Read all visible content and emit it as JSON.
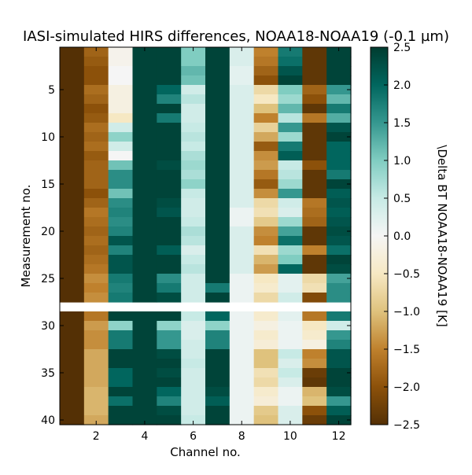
{
  "chart_data": {
    "type": "heatmap",
    "title": "IASI-simulated HIRS differences, NOAA18-NOAA19 (-0.1 µm)",
    "xlabel": "Channel no.",
    "ylabel": "Measurement no.",
    "colorbar_label": "\\Delta BT NOAA18-NOAA19 [K]",
    "colormap": "BrBG",
    "vmin": -2.5,
    "vmax": 2.5,
    "x_ticks": [
      2,
      4,
      6,
      8,
      10,
      12
    ],
    "y_ticks": [
      5,
      10,
      15,
      20,
      25,
      30,
      35,
      40
    ],
    "colorbar_ticks": [
      -2.5,
      -2.0,
      -1.5,
      -1.0,
      -0.5,
      0.0,
      0.5,
      1.0,
      1.5,
      2.0,
      2.5
    ],
    "colorbar_tick_labels": [
      "−2.5",
      "−2.0",
      "−1.5",
      "−1.0",
      "−0.5",
      "0.0",
      "0.5",
      "1.0",
      "1.5",
      "2.0",
      "2.5"
    ],
    "channels": [
      1,
      2,
      3,
      4,
      5,
      6,
      7,
      8,
      9,
      10,
      11,
      12
    ],
    "measurements": [
      1,
      2,
      3,
      4,
      5,
      6,
      7,
      8,
      9,
      10,
      11,
      12,
      13,
      14,
      15,
      16,
      17,
      18,
      19,
      20,
      21,
      22,
      23,
      24,
      25,
      26,
      27,
      28,
      29,
      30,
      31,
      32,
      33,
      34,
      35,
      36,
      37,
      38,
      39,
      40
    ],
    "missing_rows": [
      28
    ],
    "values": [
      [
        -2.5,
        -1.8,
        -0.1,
        2.4,
        2.4,
        1.0,
        2.4,
        0.3,
        -1.5,
        1.8,
        -2.4,
        2.4
      ],
      [
        -2.5,
        -1.9,
        -0.1,
        2.4,
        2.4,
        1.0,
        2.4,
        0.3,
        -1.6,
        1.9,
        -2.4,
        2.4
      ],
      [
        -2.5,
        -2.0,
        0.0,
        2.4,
        2.4,
        1.2,
        2.4,
        0.2,
        -1.8,
        2.2,
        -2.4,
        2.4
      ],
      [
        -2.5,
        -2.0,
        0.0,
        2.4,
        2.4,
        1.1,
        2.4,
        0.2,
        -2.0,
        2.4,
        -2.4,
        2.4
      ],
      [
        -2.5,
        -1.7,
        -0.2,
        2.4,
        2.0,
        0.4,
        2.4,
        0.3,
        -0.7,
        1.0,
        -1.8,
        1.5
      ],
      [
        -2.5,
        -1.8,
        -0.2,
        2.4,
        1.7,
        0.6,
        2.4,
        0.3,
        -0.5,
        0.8,
        -2.0,
        1.2
      ],
      [
        -2.5,
        -2.0,
        -0.2,
        2.4,
        2.4,
        0.4,
        2.4,
        0.3,
        -1.0,
        1.2,
        -2.4,
        1.8
      ],
      [
        -2.5,
        -1.9,
        -0.5,
        2.4,
        1.8,
        0.4,
        2.4,
        0.3,
        -1.5,
        0.6,
        -1.6,
        1.3
      ],
      [
        -2.5,
        -1.7,
        0.4,
        2.4,
        2.4,
        0.5,
        2.4,
        0.3,
        -0.8,
        1.5,
        -2.4,
        2.2
      ],
      [
        -2.5,
        -1.8,
        0.9,
        2.4,
        2.4,
        0.6,
        2.4,
        0.3,
        -1.2,
        0.8,
        -2.4,
        2.4
      ],
      [
        -2.5,
        -1.7,
        0.4,
        2.4,
        2.4,
        0.5,
        2.4,
        0.3,
        -1.9,
        1.8,
        -2.4,
        2.0
      ],
      [
        -2.5,
        -1.9,
        0.0,
        2.4,
        2.4,
        0.7,
        2.4,
        0.3,
        -1.4,
        2.1,
        -2.4,
        2.0
      ],
      [
        -2.5,
        -1.8,
        1.1,
        2.4,
        2.3,
        0.8,
        2.4,
        0.3,
        -1.3,
        0.5,
        -2.0,
        2.0
      ],
      [
        -2.5,
        -1.8,
        1.6,
        2.4,
        2.4,
        0.7,
        2.4,
        0.3,
        -1.6,
        0.6,
        -2.4,
        1.8
      ],
      [
        -2.5,
        -1.8,
        1.6,
        2.4,
        2.4,
        0.9,
        2.4,
        0.3,
        -1.9,
        0.8,
        -2.4,
        2.4
      ],
      [
        -2.5,
        -2.0,
        1.1,
        2.4,
        2.4,
        0.5,
        2.4,
        0.3,
        -1.4,
        1.5,
        -2.4,
        2.1
      ],
      [
        -2.5,
        -1.8,
        1.6,
        2.4,
        2.3,
        0.4,
        2.4,
        0.3,
        -0.7,
        0.4,
        -1.6,
        2.2
      ],
      [
        -2.5,
        -1.6,
        1.7,
        2.4,
        2.2,
        0.4,
        2.4,
        0.1,
        -0.6,
        0.3,
        -1.7,
        2.1
      ],
      [
        -2.5,
        -1.7,
        1.6,
        2.4,
        2.4,
        0.5,
        2.4,
        0.1,
        -0.9,
        0.8,
        -1.8,
        2.2
      ],
      [
        -2.5,
        -1.8,
        1.7,
        2.4,
        2.4,
        0.7,
        2.4,
        0.3,
        -1.4,
        1.4,
        -2.4,
        2.3
      ],
      [
        -2.5,
        -1.7,
        2.2,
        2.4,
        2.4,
        0.6,
        2.4,
        0.3,
        -1.5,
        1.9,
        -2.4,
        2.2
      ],
      [
        -2.5,
        -1.8,
        1.7,
        2.4,
        2.1,
        0.3,
        2.4,
        0.3,
        -0.6,
        0.8,
        -1.5,
        1.9
      ],
      [
        -2.5,
        -1.7,
        2.2,
        2.4,
        2.4,
        0.5,
        2.4,
        0.3,
        -1.1,
        1.0,
        -2.4,
        2.4
      ],
      [
        -2.5,
        -1.6,
        2.2,
        2.4,
        2.4,
        0.6,
        2.4,
        0.3,
        -1.3,
        2.0,
        -2.4,
        2.3
      ],
      [
        -2.5,
        -1.4,
        1.8,
        2.4,
        1.6,
        0.4,
        2.4,
        0.1,
        -0.5,
        0.2,
        -0.7,
        1.4
      ],
      [
        -2.5,
        -1.5,
        1.7,
        2.4,
        1.8,
        0.4,
        1.8,
        0.1,
        -0.4,
        0.2,
        -0.6,
        1.6
      ],
      [
        -2.5,
        -1.4,
        1.8,
        2.4,
        2.3,
        0.4,
        2.4,
        0.1,
        -0.7,
        0.4,
        -2.1,
        1.6
      ],
      [
        null,
        null,
        null,
        null,
        null,
        null,
        null,
        null,
        null,
        null,
        null,
        null
      ],
      [
        -2.5,
        -1.6,
        2.4,
        2.4,
        2.4,
        0.5,
        2.0,
        0.1,
        -0.4,
        0.2,
        -1.6,
        1.8
      ],
      [
        -2.5,
        -1.3,
        0.9,
        2.4,
        0.9,
        0.3,
        0.9,
        0.1,
        -0.2,
        0.1,
        -0.5,
        0.4
      ],
      [
        -2.5,
        -1.4,
        1.8,
        2.4,
        1.5,
        0.3,
        1.7,
        0.1,
        -0.4,
        0.1,
        -0.4,
        1.5
      ],
      [
        -2.5,
        -1.4,
        1.8,
        2.4,
        1.5,
        0.4,
        1.7,
        0.1,
        -0.3,
        0.1,
        -0.2,
        1.7
      ],
      [
        -2.5,
        -1.2,
        2.4,
        2.4,
        2.3,
        0.4,
        2.4,
        0.1,
        -1.0,
        0.5,
        -1.5,
        2.2
      ],
      [
        -2.5,
        -1.2,
        2.4,
        2.4,
        2.4,
        0.5,
        2.4,
        0.1,
        -1.0,
        0.3,
        -1.4,
        2.2
      ],
      [
        -2.5,
        -1.2,
        2.0,
        2.4,
        2.3,
        0.4,
        2.4,
        0.1,
        -0.6,
        0.5,
        -2.3,
        2.4
      ],
      [
        -2.5,
        -1.2,
        2.0,
        2.4,
        2.4,
        0.4,
        2.4,
        0.1,
        -0.7,
        0.3,
        -2.4,
        2.4
      ],
      [
        -2.5,
        -1.1,
        2.4,
        2.4,
        2.0,
        0.4,
        2.3,
        0.1,
        -0.4,
        0.1,
        -1.1,
        2.3
      ],
      [
        -2.5,
        -1.1,
        1.9,
        2.4,
        1.7,
        0.4,
        2.1,
        0.1,
        -0.3,
        0.1,
        -1.0,
        1.5
      ],
      [
        -2.5,
        -1.1,
        2.4,
        2.4,
        2.3,
        0.4,
        2.4,
        0.1,
        -0.9,
        0.3,
        -2.0,
        2.1
      ],
      [
        -2.5,
        -1.2,
        2.4,
        2.4,
        2.4,
        0.5,
        2.4,
        0.1,
        -1.0,
        0.3,
        -2.3,
        2.4
      ]
    ]
  }
}
